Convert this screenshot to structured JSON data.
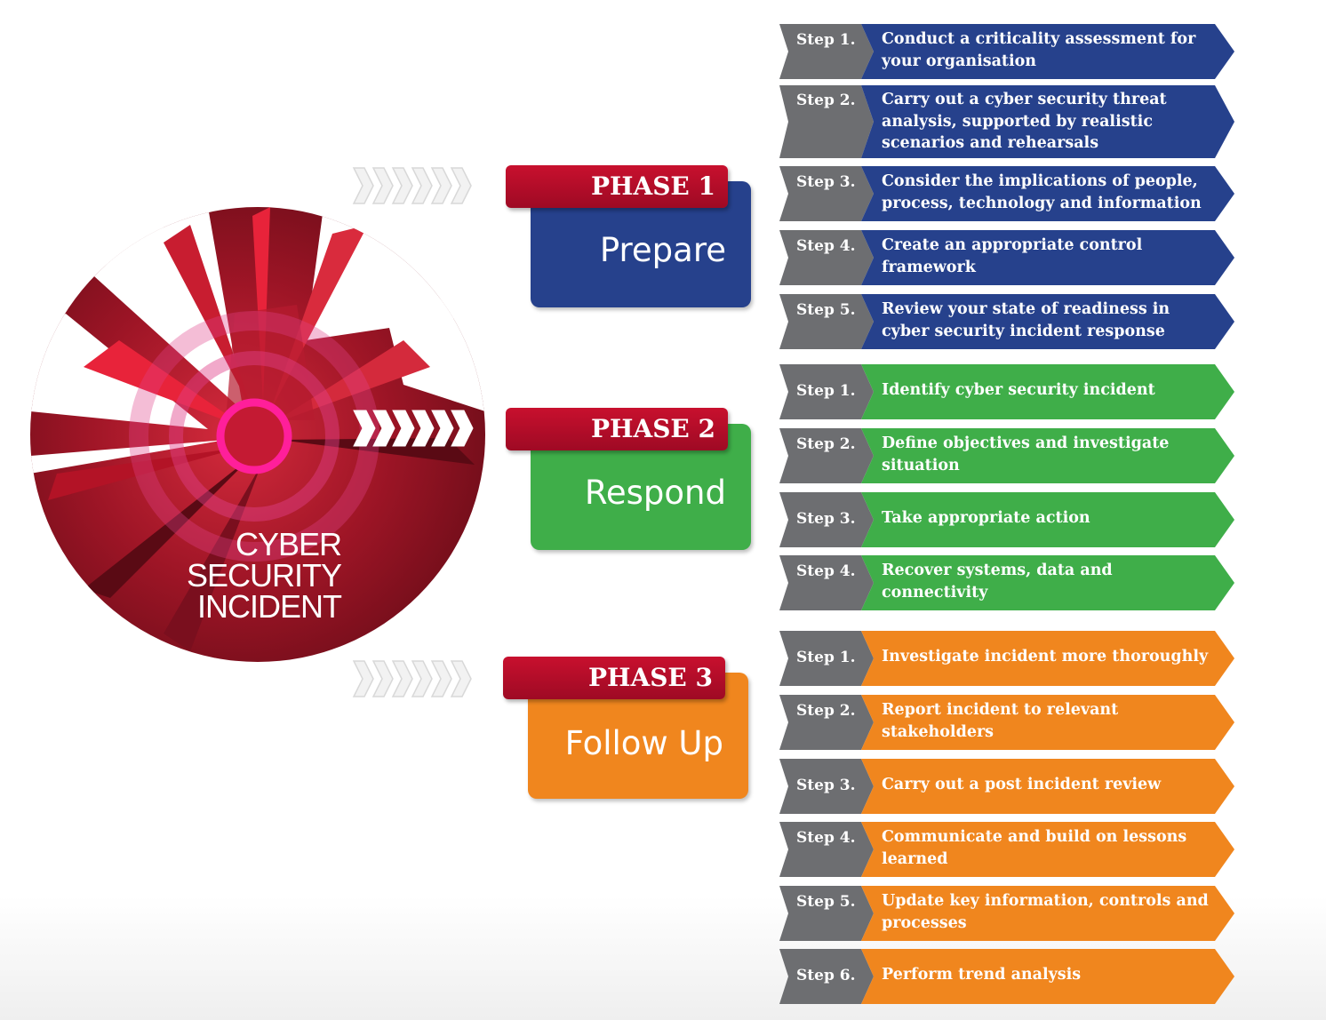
{
  "incident": {
    "label_lines": [
      "CYBER",
      "SECURITY",
      "INCIDENT"
    ]
  },
  "colors": {
    "prepare": "#26418c",
    "respond": "#3fae49",
    "follow_up": "#f0861e",
    "phase_tag": "#b50d29",
    "step_gray": "#6d6e71"
  },
  "phases": [
    {
      "tag": "PHASE 1",
      "name": "Prepare",
      "steps": [
        {
          "num": "Step 1.",
          "text": "Conduct a criticality assessment for your organisation"
        },
        {
          "num": "Step 2.",
          "text": "Carry out a cyber security threat analysis, supported by realistic scenarios and rehearsals"
        },
        {
          "num": "Step 3.",
          "text": "Consider the implications of people, process, technology and information"
        },
        {
          "num": "Step 4.",
          "text": "Create an appropriate control framework"
        },
        {
          "num": "Step 5.",
          "text": "Review your state of readiness in cyber security incident response"
        }
      ]
    },
    {
      "tag": "PHASE 2",
      "name": "Respond",
      "steps": [
        {
          "num": "Step 1.",
          "text": "Identify cyber security incident"
        },
        {
          "num": "Step 2.",
          "text": "Define objectives and investigate situation"
        },
        {
          "num": "Step 3.",
          "text": "Take appropriate action"
        },
        {
          "num": "Step 4.",
          "text": "Recover systems, data and connectivity"
        }
      ]
    },
    {
      "tag": "PHASE 3",
      "name": "Follow Up",
      "steps": [
        {
          "num": "Step 1.",
          "text": "Investigate incident more thoroughly"
        },
        {
          "num": "Step 2.",
          "text": "Report incident to relevant stakeholders"
        },
        {
          "num": "Step 3.",
          "text": "Carry out a post incident review"
        },
        {
          "num": "Step 4.",
          "text": "Communicate and build on lessons learned"
        },
        {
          "num": "Step 5.",
          "text": "Update key information, controls and processes"
        },
        {
          "num": "Step 6.",
          "text": "Perform trend analysis"
        }
      ]
    }
  ]
}
